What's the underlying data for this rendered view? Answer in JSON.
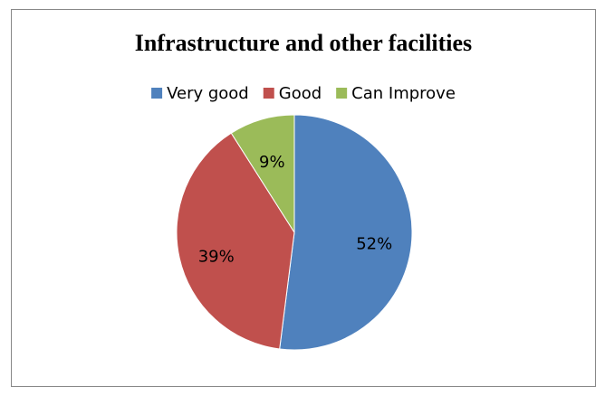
{
  "chart_data": {
    "type": "pie",
    "title": "Infrastructure and other facilities",
    "categories": [
      "Very good",
      "Good",
      "Can Improve"
    ],
    "values": [
      52,
      39,
      9
    ],
    "value_labels": [
      "52%",
      "39%",
      "9%"
    ],
    "colors": [
      "#4f81bd",
      "#c0504d",
      "#9bbb59"
    ],
    "legend": "top"
  }
}
